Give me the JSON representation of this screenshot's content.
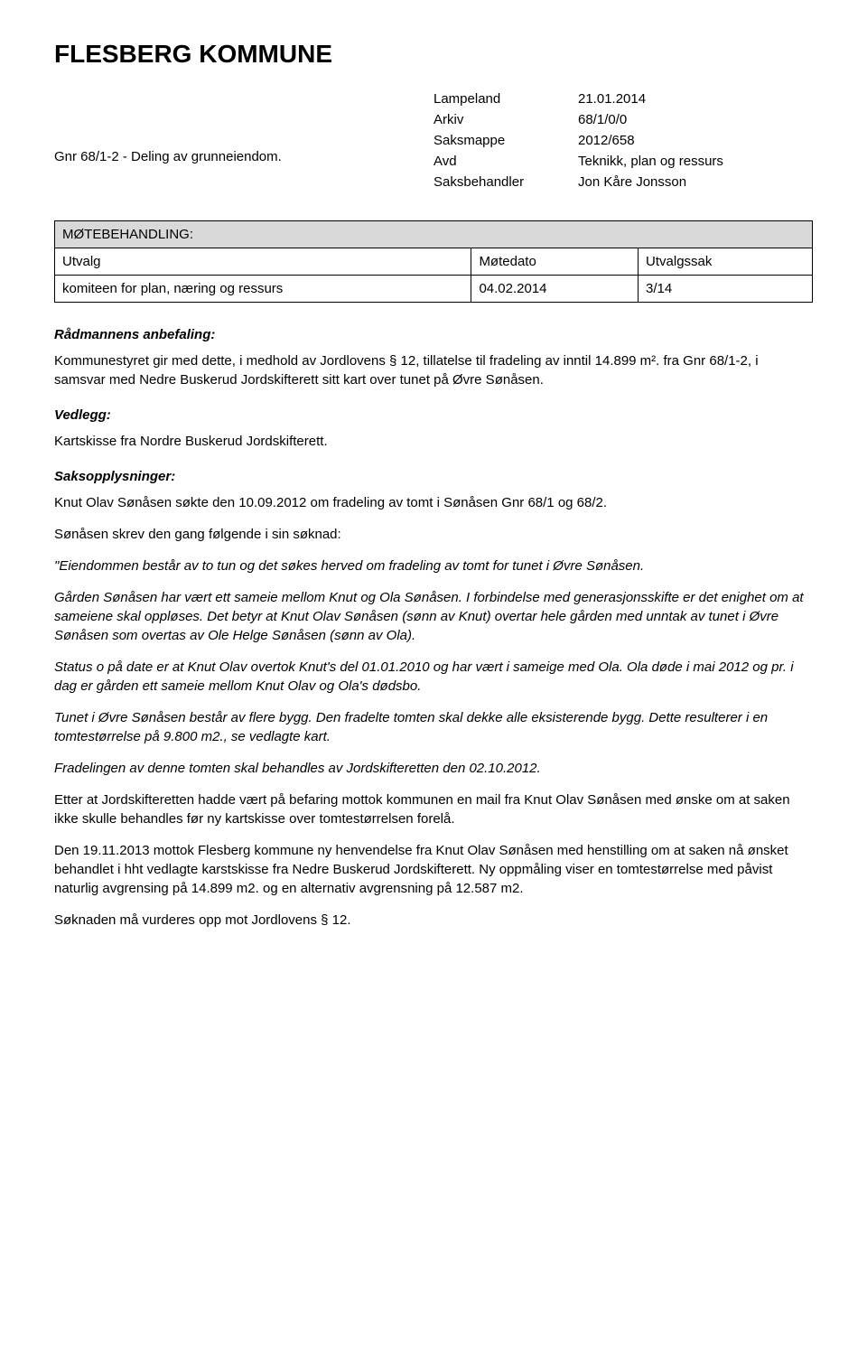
{
  "header": {
    "title": "FLESBERG KOMMUNE"
  },
  "meta": {
    "deling_text": "Gnr 68/1-2 - Deling av grunneiendom.",
    "rows": [
      {
        "label": "Lampeland",
        "value": "21.01.2014"
      },
      {
        "label": "Arkiv",
        "value": "68/1/0/0"
      },
      {
        "label": "Saksmappe",
        "value": "2012/658"
      },
      {
        "label": "Avd",
        "value": "Teknikk, plan og ressurs"
      },
      {
        "label": "Saksbehandler",
        "value": "Jon Kåre Jonsson"
      }
    ]
  },
  "mote_table": {
    "header_title": "MØTEBEHANDLING:",
    "columns": [
      "Utvalg",
      "Møtedato",
      "Utvalgssak"
    ],
    "row": [
      "komiteen for plan, næring og ressurs",
      "04.02.2014",
      "3/14"
    ]
  },
  "sections": {
    "radmannens_heading": "Rådmannens anbefaling:",
    "radmannens_body": "Kommunestyret gir med dette, i medhold av Jordlovens § 12, tillatelse til fradeling av inntil 14.899 m². fra Gnr 68/1-2, i samsvar med Nedre Buskerud Jordskifterett sitt kart over tunet på Øvre Sønåsen.",
    "vedlegg_heading": "Vedlegg:",
    "vedlegg_body": "Kartskisse fra Nordre Buskerud Jordskifterett.",
    "saksopp_heading": "Saksopplysninger:",
    "saksopp_p1": "Knut Olav Sønåsen søkte den 10.09.2012 om fradeling av tomt i Sønåsen Gnr 68/1 og 68/2.",
    "saksopp_p2": "Sønåsen skrev den gang følgende i sin søknad:",
    "quote_p1": "\"Eiendommen består av to tun og det søkes herved om fradeling av tomt for tunet i Øvre Sønåsen.",
    "quote_p2": "Gården Sønåsen har vært ett sameie mellom Knut og Ola Sønåsen. I forbindelse med generasjonsskifte er det enighet om at sameiene skal oppløses. Det betyr at Knut Olav Sønåsen (sønn av Knut) overtar hele gården med unntak av tunet i Øvre Sønåsen som overtas av Ole Helge Sønåsen (sønn av Ola).",
    "quote_p3": "Status o på date er at Knut Olav overtok Knut's del 01.01.2010 og har vært i sameige med Ola. Ola døde i mai 2012 og pr. i dag er gården ett sameie mellom Knut Olav og Ola's dødsbo.",
    "quote_p4": "Tunet i Øvre Sønåsen består av flere bygg. Den fradelte tomten skal dekke alle eksisterende bygg. Dette resulterer i en tomtestørrelse på 9.800 m2., se vedlagte kart.",
    "quote_p5": "Fradelingen av denne tomten skal behandles av Jordskifteretten den 02.10.2012.",
    "after_p1": "Etter at Jordskifteretten hadde vært på befaring mottok kommunen en mail fra Knut Olav Sønåsen med ønske om at saken ikke skulle behandles før ny kartskisse over tomtestørrelsen forelå.",
    "after_p2": "Den 19.11.2013 mottok Flesberg kommune ny henvendelse fra Knut Olav Sønåsen med henstilling om at saken nå ønsket behandlet i hht vedlagte karstskisse fra Nedre Buskerud Jordskifterett. Ny oppmåling viser en tomtestørrelse med påvist naturlig avgrensing på 14.899 m2. og en alternativ avgrensning på 12.587 m2.",
    "after_p3": "Søknaden må vurderes opp mot Jordlovens § 12."
  },
  "styling": {
    "background_color": "#ffffff",
    "text_color": "#000000",
    "table_border_color": "#000000",
    "table_header_bg": "#d9d9d9",
    "body_fontsize": 15,
    "title_fontsize": 28
  }
}
